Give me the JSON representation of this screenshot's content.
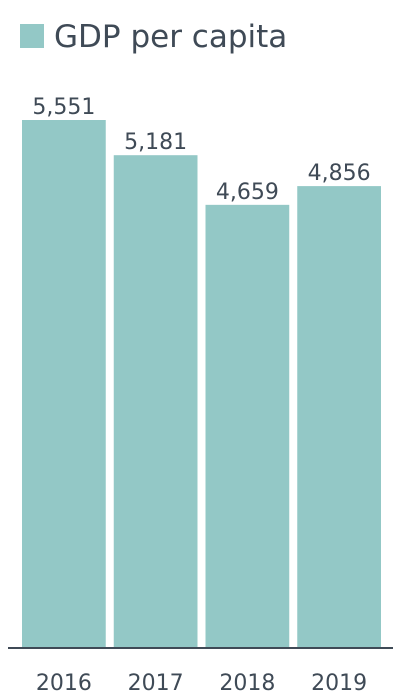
{
  "chart_data": {
    "type": "bar",
    "categories": [
      "2016",
      "2017",
      "2018",
      "2019"
    ],
    "series": [
      {
        "name": "GDP per capita",
        "values": [
          5551,
          5181,
          4659,
          4856
        ]
      }
    ],
    "value_labels": [
      "5,551",
      "5,181",
      "4,659",
      "4,856"
    ],
    "title": "",
    "xlabel": "",
    "ylabel": "",
    "ylim": [
      0,
      5551
    ],
    "grid": false,
    "legend": "top-left",
    "colors": {
      "bar": "#93c8c6",
      "axis": "#3f4a56",
      "text": "#3f4a56"
    }
  }
}
